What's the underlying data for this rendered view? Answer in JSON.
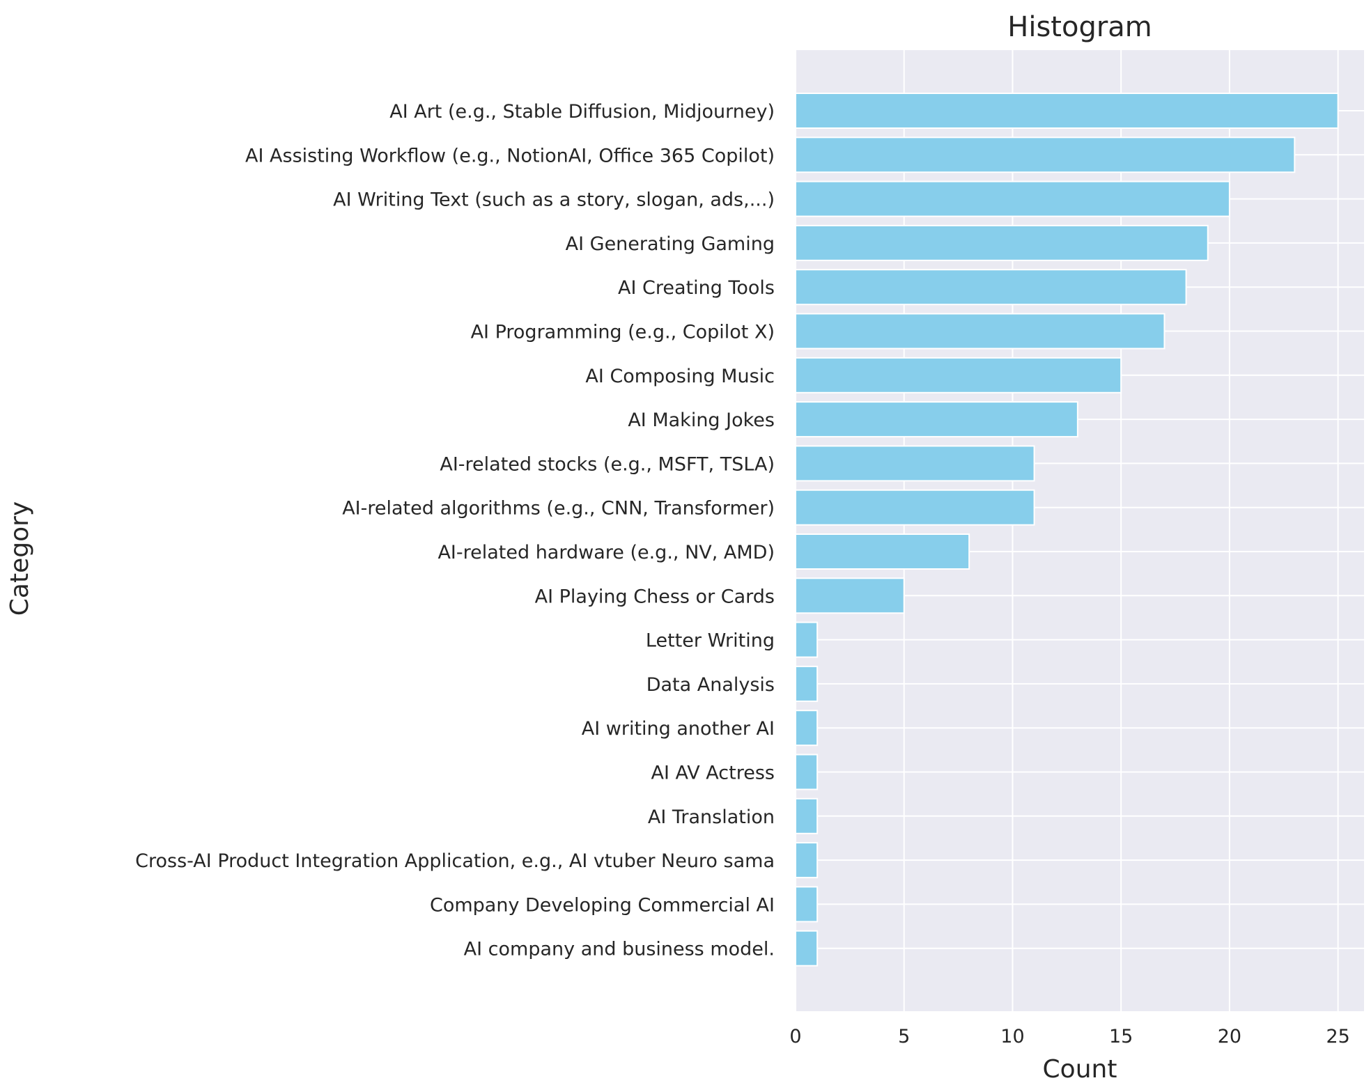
{
  "chart_data": {
    "type": "bar",
    "orientation": "horizontal",
    "title": "Histogram",
    "xlabel": "Count",
    "ylabel": "Category",
    "categories": [
      "AI Art (e.g., Stable Diffusion, Midjourney)",
      "AI Assisting Workflow (e.g., NotionAI, Office 365 Copilot)",
      "AI Writing Text (such as a story, slogan, ads,...)",
      "AI Generating Gaming",
      "AI Creating Tools",
      "AI Programming (e.g., Copilot X)",
      "AI Composing Music",
      "AI Making Jokes",
      "AI-related stocks (e.g., MSFT, TSLA)",
      "AI-related algorithms (e.g., CNN, Transformer)",
      "AI-related hardware (e.g., NV, AMD)",
      "AI Playing Chess or Cards",
      "Letter Writing",
      "Data Analysis",
      "AI writing another AI",
      "AI AV Actress",
      "AI Translation",
      "Cross-AI Product Integration Application, e.g., AI vtuber Neuro sama",
      "Company Developing Commercial AI",
      "AI company and business model."
    ],
    "values": [
      25,
      23,
      20,
      19,
      18,
      17,
      15,
      13,
      11,
      11,
      8,
      5,
      1,
      1,
      1,
      1,
      1,
      1,
      1,
      1
    ],
    "xlim": [
      0,
      26.2
    ],
    "xticks": [
      0,
      5,
      10,
      15,
      20,
      25
    ],
    "grid": true,
    "bar_color": "#87ceeb",
    "background_color": "#eaeaf2",
    "grid_color": "#ffffff"
  }
}
